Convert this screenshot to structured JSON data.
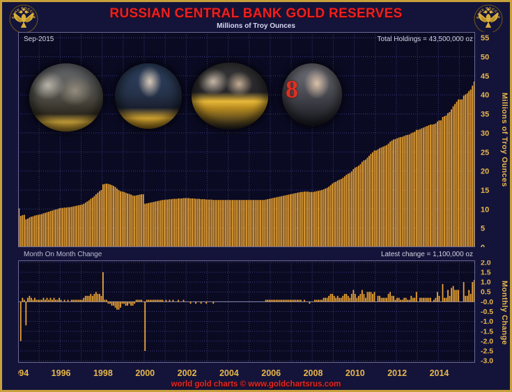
{
  "header": {
    "title": "RUSSIAN CENTRAL BANK GOLD RESERVES",
    "subtitle": "Millions of Troy Ounces",
    "emblem_text": "БАНК РОССИИ"
  },
  "top_panel": {
    "date_label": "Sep-2015",
    "total_label": "Total Holdings =  43,500,000 oz",
    "y_axis_title": "Millions of Troy Ounces"
  },
  "bottom_panel": {
    "label": "Month On Month Change",
    "latest_label": "Latest change =  1,100,000 oz",
    "y_axis_title": "Monthly Change"
  },
  "footer": {
    "credit": "world gold charts © www.goldchartsrus.com"
  },
  "photos": {
    "overlay_8": "8"
  },
  "colors": {
    "bar": "#E8A132",
    "gold_text": "#E8B84B",
    "title_red": "#EE2020",
    "footer_red": "#E02828",
    "background": "#14143A",
    "plot_bg": "#0A0A22",
    "grid": "#3C3C80",
    "plot_border": "#6A6A96",
    "zero_line": "#8A8AB0",
    "frame_gold": "#C9A13B"
  },
  "chart_data": {
    "type": "bar",
    "title": "Russian Central Bank Gold Reserves",
    "units": "millions of troy ounces",
    "x_start": "1994-01",
    "x_end": "2015-09",
    "x_start_year": 1994,
    "x_end_year": 2015,
    "months_total": 261,
    "x_tick_years": [
      1994,
      1996,
      1998,
      2000,
      2002,
      2004,
      2006,
      2008,
      2010,
      2012,
      2014
    ],
    "top": {
      "ylabel": "Millions of Troy Ounces",
      "ylim": [
        0,
        56.5
      ],
      "yticks": [
        0,
        5,
        10,
        15,
        20,
        25,
        30,
        35,
        40,
        45,
        50,
        55
      ],
      "grid": true
    },
    "bottom": {
      "ylabel": "Monthly Change",
      "ylim": [
        -3.1,
        2.1
      ],
      "ytick_values": [
        2.0,
        1.5,
        1.0,
        0.5,
        0,
        -0.5,
        -1.0,
        -1.5,
        -2.0,
        -2.5,
        -3.0
      ],
      "ytick_labels": [
        "2.0",
        "1.5",
        "1.0",
        "0.5",
        "-0.0",
        "-0.5",
        "-1.0",
        "-1.5",
        "-2.0",
        "-2.5",
        "-3.0"
      ],
      "note": "bars are month-on-month differences of series_moz",
      "grid": true
    },
    "total_holdings_moz": 43.5,
    "latest_change_moz": 1.1,
    "series_moz": [
      10.2,
      8.2,
      8.4,
      8.5,
      7.3,
      7.5,
      7.8,
      8.0,
      8.1,
      8.3,
      8.4,
      8.5,
      8.6,
      8.7,
      8.9,
      9.0,
      9.2,
      9.3,
      9.5,
      9.6,
      9.8,
      9.9,
      10.0,
      10.2,
      10.3,
      10.3,
      10.4,
      10.4,
      10.5,
      10.5,
      10.6,
      10.7,
      10.8,
      10.9,
      11.0,
      11.1,
      11.2,
      11.4,
      11.7,
      12.0,
      12.3,
      12.7,
      13.0,
      13.4,
      13.9,
      14.3,
      14.7,
      15.0,
      16.5,
      16.6,
      16.7,
      16.6,
      16.5,
      16.3,
      16.1,
      15.8,
      15.4,
      15.0,
      14.7,
      14.6,
      14.5,
      14.3,
      14.1,
      14.0,
      13.8,
      13.6,
      13.5,
      13.6,
      13.7,
      13.8,
      13.9,
      13.9,
      11.4,
      11.5,
      11.6,
      11.7,
      11.8,
      11.9,
      12.0,
      12.1,
      12.2,
      12.3,
      12.4,
      12.4,
      12.5,
      12.5,
      12.6,
      12.6,
      12.7,
      12.7,
      12.7,
      12.8,
      12.8,
      12.8,
      12.9,
      12.9,
      12.9,
      12.9,
      12.8,
      12.8,
      12.8,
      12.7,
      12.7,
      12.7,
      12.6,
      12.6,
      12.6,
      12.5,
      12.5,
      12.5,
      12.5,
      12.4,
      12.4,
      12.4,
      12.4,
      12.4,
      12.4,
      12.4,
      12.4,
      12.4,
      12.4,
      12.4,
      12.4,
      12.4,
      12.4,
      12.4,
      12.4,
      12.4,
      12.4,
      12.4,
      12.4,
      12.4,
      12.4,
      12.4,
      12.4,
      12.4,
      12.4,
      12.4,
      12.4,
      12.4,
      12.4,
      12.5,
      12.6,
      12.7,
      12.8,
      12.9,
      13.0,
      13.1,
      13.2,
      13.3,
      13.4,
      13.5,
      13.6,
      13.7,
      13.8,
      13.9,
      14.0,
      14.1,
      14.2,
      14.3,
      14.4,
      14.5,
      14.5,
      14.6,
      14.6,
      14.6,
      14.5,
      14.5,
      14.5,
      14.6,
      14.7,
      14.8,
      14.9,
      15.0,
      15.2,
      15.4,
      15.6,
      15.9,
      16.3,
      16.7,
      17.0,
      17.2,
      17.5,
      17.7,
      17.9,
      18.2,
      18.6,
      19.0,
      19.3,
      19.5,
      19.9,
      20.5,
      20.9,
      21.1,
      21.4,
      21.8,
      22.4,
      22.8,
      23.0,
      23.5,
      24.0,
      24.5,
      24.9,
      25.4,
      25.4,
      25.7,
      26.0,
      26.2,
      26.4,
      26.6,
      26.8,
      27.2,
      27.7,
      28.0,
      28.3,
      28.4,
      28.6,
      28.8,
      28.9,
      29.0,
      29.2,
      29.4,
      29.5,
      29.6,
      29.9,
      30.1,
      30.3,
      30.8,
      30.8,
      31.0,
      31.2,
      31.4,
      31.6,
      31.8,
      32.0,
      32.2,
      32.2,
      32.3,
      32.5,
      33.0,
      33.3,
      33.3,
      34.2,
      34.4,
      34.6,
      35.2,
      35.5,
      36.2,
      37.0,
      37.6,
      38.2,
      38.8,
      38.8,
      38.8,
      39.8,
      40.1,
      40.4,
      41.0,
      41.4,
      42.4,
      43.5
    ]
  }
}
